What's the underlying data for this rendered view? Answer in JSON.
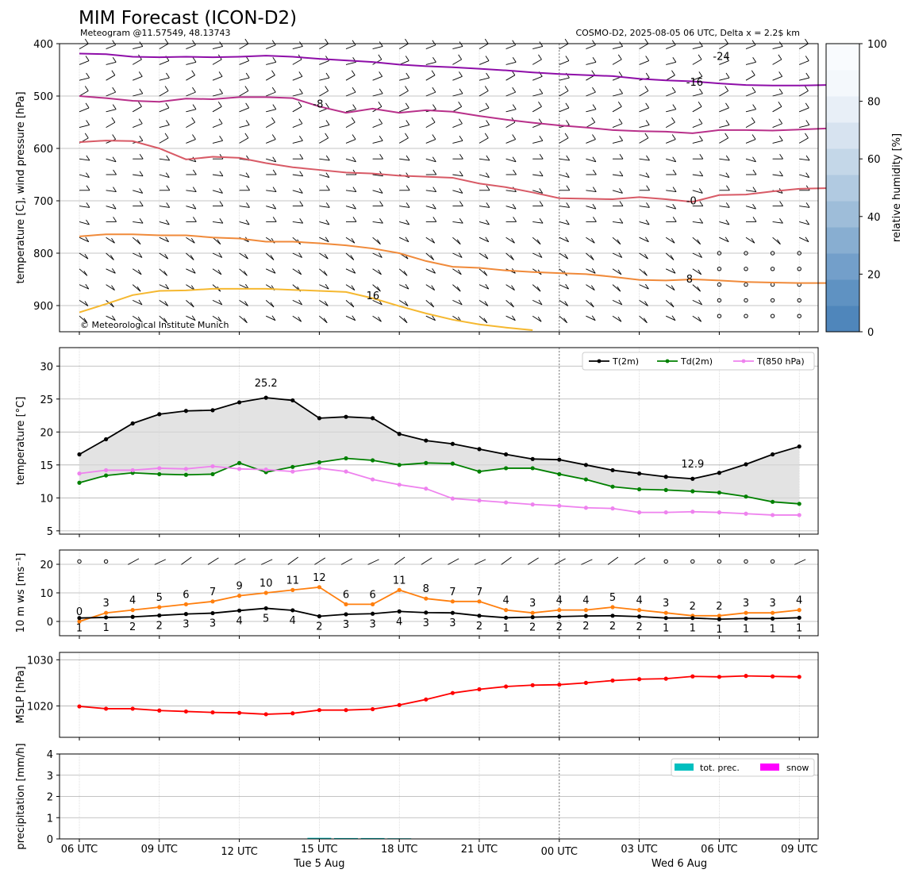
{
  "header": {
    "title": "MIM Forecast (ICON-D2)",
    "subtitle_left": "Meteogram @11.57549, 48.13743",
    "subtitle_right": "COSMO-D2, 2025-08-05 06 UTC, Delta x = 2.2$ km"
  },
  "time_axis": {
    "tick_labels": [
      "06 UTC",
      "09 UTC",
      "12 UTC",
      "15 UTC",
      "18 UTC",
      "21 UTC",
      "00 UTC",
      "03 UTC",
      "06 UTC",
      "09 UTC"
    ],
    "date_labels": [
      "Tue 5 Aug",
      "Wed 6 Aug"
    ],
    "hours": [
      0,
      1,
      2,
      3,
      4,
      5,
      6,
      7,
      8,
      9,
      10,
      11,
      12,
      13,
      14,
      15,
      16,
      17,
      18,
      19,
      20,
      21,
      22,
      23,
      24,
      25,
      26,
      27
    ]
  },
  "chart_data": [
    {
      "type": "line",
      "name": "upper-air",
      "ylabel": "temperature [C], wind pressure [hPa]",
      "yticks": [
        400,
        500,
        600,
        700,
        800,
        900
      ],
      "ylim": [
        950,
        400
      ],
      "copyright": "© Meteorological Institute Munich",
      "colorbar": {
        "label": "relative humidity [%]",
        "ticks": [
          0,
          20,
          40,
          60,
          80,
          100
        ]
      },
      "isotherms": [
        {
          "label": "-24",
          "color": "#8e0ea8",
          "p": [
            419,
            420,
            425,
            426,
            425,
            426,
            425,
            423,
            425,
            429,
            432,
            435,
            440,
            443,
            445,
            448,
            451,
            455,
            458,
            460,
            462,
            467,
            470,
            472,
            476,
            479,
            480,
            480,
            479,
            477
          ]
        },
        {
          "label": "-16",
          "color": "#b8308a",
          "p": [
            500,
            504,
            509,
            511,
            505,
            506,
            502,
            502,
            504,
            520,
            532,
            524,
            532,
            527,
            530,
            538,
            545,
            551,
            556,
            560,
            565,
            567,
            568,
            571,
            565,
            565,
            566,
            564,
            562
          ]
        },
        {
          "label": "-8",
          "color": "#d85a66",
          "p": [
            588,
            585,
            586,
            600,
            621,
            616,
            618,
            628,
            636,
            641,
            646,
            648,
            652,
            654,
            656,
            667,
            674,
            684,
            695,
            696,
            697,
            693,
            697,
            702,
            689,
            688,
            682,
            677,
            676
          ]
        },
        {
          "label": "0",
          "color": "#f08a3a",
          "p": [
            768,
            764,
            764,
            766,
            766,
            770,
            772,
            778,
            778,
            781,
            785,
            791,
            800,
            815,
            826,
            828,
            833,
            836,
            838,
            840,
            845,
            851,
            852,
            850,
            852,
            855,
            856,
            857,
            857
          ]
        },
        {
          "label": "8",
          "color": "#f5b830",
          "p": [
            913,
            897,
            880,
            872,
            871,
            868,
            868,
            868,
            870,
            872,
            874,
            886,
            901,
            915,
            927,
            936,
            942,
            947
          ]
        }
      ],
      "labels": [
        "-24",
        "-16",
        "-8",
        "0",
        "8",
        "16"
      ]
    },
    {
      "type": "line",
      "name": "surface-temperature",
      "ylabel": "temperature [$^\\circ$C]",
      "yticks": [
        5,
        10,
        15,
        20,
        25,
        30
      ],
      "ylim": [
        4.5,
        32.8
      ],
      "series": [
        {
          "name": "T(2m)",
          "color": "#000000",
          "values": [
            16.6,
            18.9,
            21.3,
            22.7,
            23.2,
            23.3,
            24.5,
            25.2,
            24.8,
            22.1,
            22.3,
            22.1,
            19.7,
            18.7,
            18.2,
            17.4,
            16.6,
            15.9,
            15.8,
            15.0,
            14.2,
            13.7,
            13.2,
            12.9,
            13.8,
            15.1,
            16.6,
            17.8
          ]
        },
        {
          "name": "Td(2m)",
          "color": "#008000",
          "values": [
            12.3,
            13.4,
            13.8,
            13.6,
            13.5,
            13.6,
            15.3,
            13.9,
            14.7,
            15.4,
            16.0,
            15.7,
            15.0,
            15.3,
            15.2,
            14.0,
            14.5,
            14.5,
            13.6,
            12.8,
            11.7,
            11.3,
            11.2,
            11.0,
            10.8,
            10.2,
            9.4,
            9.1
          ]
        },
        {
          "name": "T(850 hPa)",
          "color": "#ee82ee",
          "values": [
            13.7,
            14.2,
            14.2,
            14.5,
            14.4,
            14.8,
            14.4,
            14.3,
            14.0,
            14.5,
            14.0,
            12.8,
            12.0,
            11.4,
            9.9,
            9.6,
            9.3,
            9.0,
            8.8,
            8.5,
            8.4,
            7.8,
            7.8,
            7.9,
            7.8,
            7.6,
            7.4,
            7.4
          ]
        }
      ],
      "annotations": [
        {
          "text": "25.2",
          "color": "#e00000"
        },
        {
          "text": "12.9",
          "color": "#0000e0"
        }
      ]
    },
    {
      "type": "line",
      "name": "wind",
      "ylabel": "10 m ws [ms$^{-1}$]",
      "yticks": [
        0,
        10,
        20
      ],
      "ylim": [
        -5,
        25
      ],
      "series": [
        {
          "name": "gust",
          "color": "#ff7f0e",
          "values": [
            0,
            3,
            4,
            5,
            6,
            7,
            9,
            10,
            11,
            12,
            6,
            6,
            11,
            8,
            7,
            7,
            4,
            3,
            4,
            4,
            5,
            4,
            3,
            2,
            2,
            3,
            3,
            4
          ],
          "labels": [
            "0",
            "3",
            "4",
            "5",
            "6",
            "7",
            "9",
            "10",
            "11",
            "12",
            "6",
            "6",
            "11",
            "8",
            "7",
            "7",
            "4",
            "3",
            "4",
            "4",
            "5",
            "4",
            "3",
            "2",
            "2",
            "3",
            "3",
            "4"
          ]
        },
        {
          "name": "mean",
          "color": "#000000",
          "values": [
            1.2,
            1.4,
            1.6,
            2.1,
            2.6,
            2.9,
            3.8,
            4.6,
            3.9,
            1.8,
            2.5,
            2.7,
            3.5,
            3.1,
            3.0,
            2.0,
            1.3,
            1.5,
            1.7,
            1.9,
            2.0,
            1.7,
            1.2,
            1.2,
            0.8,
            1.0,
            1.0,
            1.3
          ],
          "labels": [
            "1",
            "1",
            "2",
            "2",
            "3",
            "3",
            "4",
            "5",
            "4",
            "2",
            "3",
            "3",
            "4",
            "3",
            "3",
            "2",
            "1",
            "2",
            "2",
            "2",
            "2",
            "2",
            "1",
            "1",
            "1",
            "1",
            "1",
            "1"
          ]
        }
      ]
    },
    {
      "type": "line",
      "name": "mslp",
      "ylabel": "MSLP [hPa]",
      "yticks": [
        1020,
        1030
      ],
      "ylim": [
        1013.2,
        1031.6
      ],
      "series": [
        {
          "name": "MSLP",
          "color": "#ff0000",
          "values": [
            1019.9,
            1019.4,
            1019.4,
            1019.0,
            1018.8,
            1018.6,
            1018.5,
            1018.2,
            1018.4,
            1019.1,
            1019.1,
            1019.3,
            1020.2,
            1021.4,
            1022.8,
            1023.6,
            1024.2,
            1024.5,
            1024.6,
            1025.0,
            1025.5,
            1025.8,
            1025.9,
            1026.4,
            1026.3,
            1026.5,
            1026.4,
            1026.3
          ]
        }
      ]
    },
    {
      "type": "bar",
      "name": "precipitation",
      "ylabel": "precipitation [mm/h]",
      "yticks": [
        0,
        1,
        2,
        3,
        4
      ],
      "ylim": [
        0,
        4
      ],
      "series": [
        {
          "name": "tot. prec.",
          "color": "#00bfbf",
          "values": [
            0,
            0,
            0,
            0,
            0,
            0,
            0,
            0,
            0,
            0.05,
            0.04,
            0.04,
            0.03,
            0,
            0,
            0,
            0,
            0,
            0,
            0,
            0,
            0,
            0,
            0,
            0,
            0,
            0
          ]
        },
        {
          "name": "snow",
          "color": "#ff00ff",
          "values": [
            0,
            0,
            0,
            0,
            0,
            0,
            0,
            0,
            0,
            0,
            0,
            0,
            0,
            0,
            0,
            0,
            0,
            0,
            0,
            0,
            0,
            0,
            0,
            0,
            0,
            0,
            0
          ]
        }
      ]
    }
  ]
}
